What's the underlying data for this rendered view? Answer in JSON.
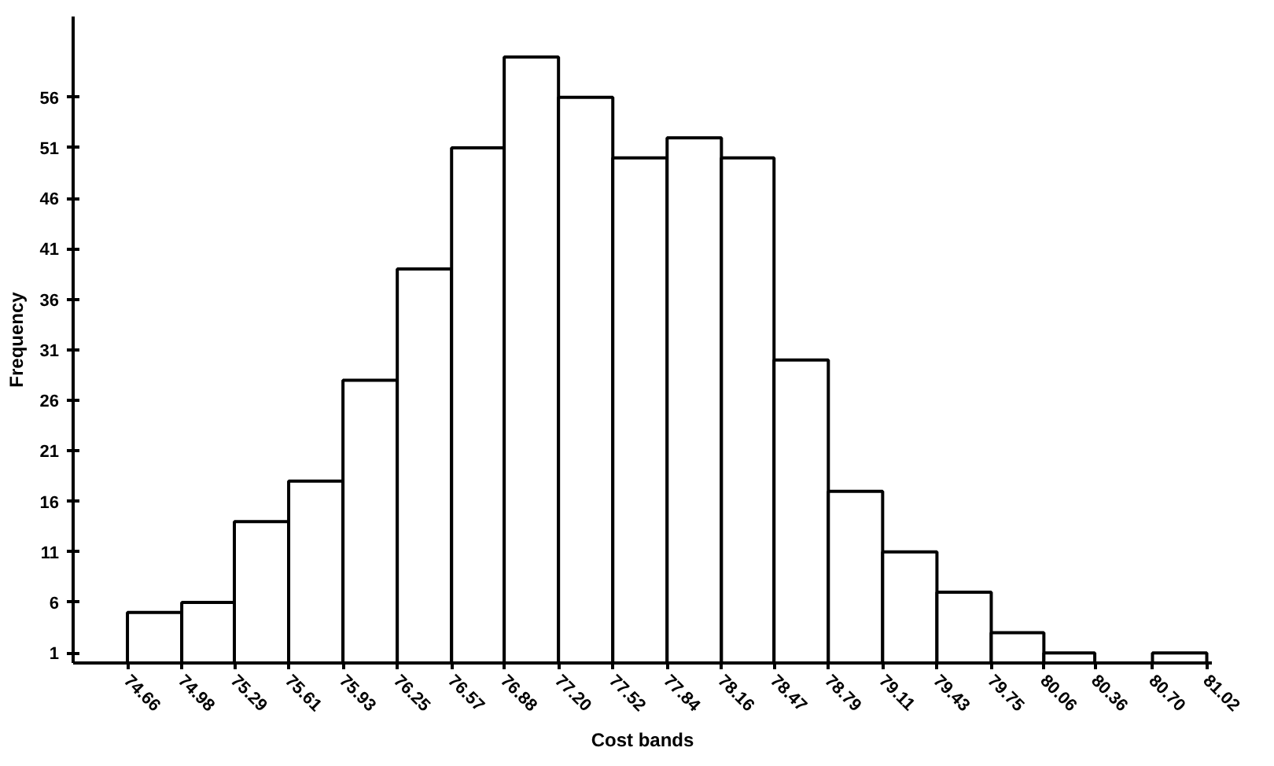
{
  "chart_data": {
    "type": "histogram",
    "xlabel": "Cost bands",
    "ylabel": "Frequency",
    "bins": [
      74.66,
      74.98,
      75.29,
      75.61,
      75.93,
      76.25,
      76.57,
      76.88,
      77.2,
      77.52,
      77.84,
      78.16,
      78.47,
      78.79,
      79.11,
      79.43,
      79.75,
      80.06,
      80.36,
      80.7,
      81.02
    ],
    "values": [
      5,
      6,
      14,
      18,
      28,
      39,
      51,
      60,
      56,
      50,
      52,
      50,
      30,
      17,
      11,
      7,
      3,
      1,
      0,
      1
    ],
    "color": "#ffffff",
    "xlim": [
      74.34,
      81.05
    ],
    "ylim": [
      0,
      64
    ],
    "xticks": [
      74.66,
      74.98,
      75.29,
      75.61,
      75.93,
      76.25,
      76.57,
      76.88,
      {
        "value": 77.2,
        "label": "77.20"
      },
      77.52,
      77.84,
      78.16,
      78.47,
      78.79,
      79.11,
      79.43,
      79.75,
      80.06,
      80.36,
      {
        "value": 80.7,
        "label": "80.70"
      },
      81.02
    ],
    "yticks": [
      1,
      6,
      11,
      16,
      21,
      26,
      31,
      36,
      41,
      46,
      51,
      56
    ]
  }
}
